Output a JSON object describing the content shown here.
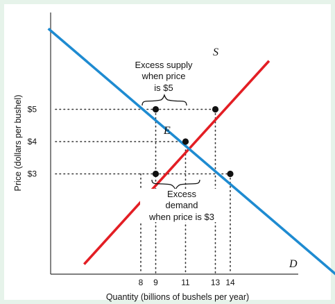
{
  "chart_data": {
    "type": "line",
    "title": "",
    "xlabel": "Quantity (billions of bushels per year)",
    "ylabel": "Price (dollars per bushel)",
    "x_ticks": [
      8,
      9,
      11,
      13,
      14
    ],
    "y_ticks": [
      {
        "value": 5,
        "label": "$5"
      },
      {
        "value": 4,
        "label": "$4"
      },
      {
        "value": 3,
        "label": "$3"
      }
    ],
    "series": [
      {
        "name": "S",
        "color": "#e31e24",
        "points": [
          [
            4.2,
            0.2
          ],
          [
            16.6,
            6.5
          ]
        ]
      },
      {
        "name": "D",
        "color": "#1e8bd1",
        "points": [
          [
            1.8,
            7.5
          ],
          [
            21.3,
            -0.2
          ]
        ]
      }
    ],
    "equilibrium": {
      "label": "E",
      "x": 11,
      "y": 4
    },
    "points": [
      {
        "x": 9,
        "y": 5
      },
      {
        "x": 13,
        "y": 5
      },
      {
        "x": 11,
        "y": 4
      },
      {
        "x": 9,
        "y": 3
      },
      {
        "x": 14,
        "y": 3
      }
    ],
    "annotations": [
      {
        "lines": [
          "Excess supply",
          "when price",
          "is $5"
        ]
      },
      {
        "lines": [
          "Excess",
          "demand",
          "when price is $3"
        ]
      }
    ]
  }
}
